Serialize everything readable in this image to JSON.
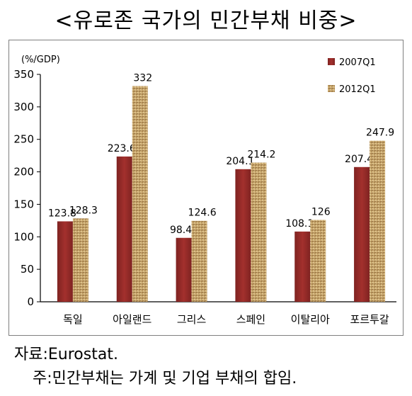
{
  "title": "<유로존 국가의 민간부채 비중>",
  "chart_data": {
    "type": "bar",
    "ylabel": "(%/GDP)",
    "categories": [
      "독일",
      "아일랜드",
      "그리스",
      "스페인",
      "이탈리아",
      "포르투갈"
    ],
    "series": [
      {
        "name": "2007Q1",
        "values": [
          123.8,
          223.6,
          98.4,
          204.1,
          108.1,
          207.4
        ],
        "color": "#9b2d2b"
      },
      {
        "name": "2012Q1",
        "values": [
          128.3,
          332,
          124.6,
          214.2,
          126,
          247.9
        ],
        "color": "#c8a56a"
      }
    ],
    "ylim": [
      0,
      350
    ],
    "yticks": [
      0,
      50,
      100,
      150,
      200,
      250,
      300,
      350
    ],
    "data_labels": [
      [
        "123.8",
        "223.6",
        "98.4",
        "204.1",
        "108.1",
        "207.4"
      ],
      [
        "128.3",
        "332",
        "124.6",
        "214.2",
        "126",
        "247.9"
      ]
    ],
    "grid": false,
    "legend_position": "top-right"
  },
  "footnotes": {
    "source": "자료:Eurostat.",
    "note": "주:민간부채는 가계 및 기업 부채의 합임."
  }
}
